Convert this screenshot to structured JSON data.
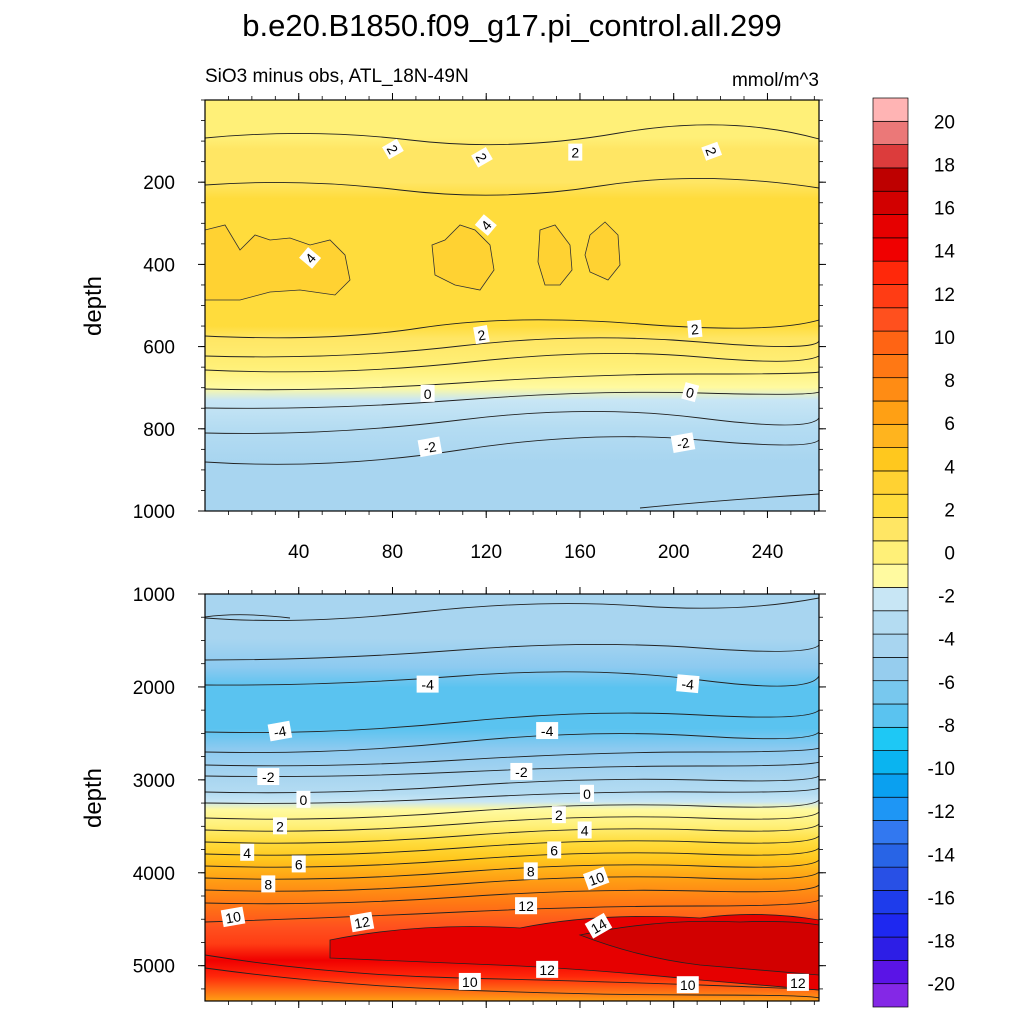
{
  "chart_data": {
    "type": "contour",
    "title": "b.e20.B1850.f09_g17.pi_control.all.299",
    "subtitle_left": "SiO3 minus obs, ATL_18N-49N",
    "subtitle_right": "mmol/m^3",
    "x_range": [
      0,
      262
    ],
    "x_ticks": [
      "40",
      "80",
      "120",
      "160",
      "200",
      "240"
    ],
    "x_tick_values": [
      40,
      80,
      120,
      160,
      200,
      240
    ],
    "colorbar": {
      "levels": [
        -20,
        -18,
        -16,
        -14,
        -12,
        -10,
        -8,
        -6,
        -4,
        -2,
        0,
        2,
        4,
        6,
        8,
        10,
        12,
        14,
        16,
        18,
        20
      ],
      "labels": [
        "20",
        "18",
        "16",
        "14",
        "12",
        "10",
        "8",
        "6",
        "4",
        "2",
        "0",
        "-2",
        "-4",
        "-6",
        "-8",
        "-10",
        "-12",
        "-14",
        "-16",
        "-18",
        "-20"
      ],
      "colors": [
        "#8428e6",
        "#5a14e6",
        "#2d1ee6",
        "#1e28f0",
        "#1e3ceb",
        "#2850e6",
        "#2864e6",
        "#3278f0",
        "#1e96f5",
        "#0aa0f0",
        "#0ab4f0",
        "#1ec8f5",
        "#5ac3f0",
        "#78c8ee",
        "#96cdee",
        "#a8d5f0",
        "#b4dcf2",
        "#c8e6f5",
        "#fffaa0",
        "#fff078",
        "#ffe664",
        "#ffdc3c",
        "#ffd232",
        "#ffc81e",
        "#ffb41e",
        "#ffa014",
        "#ff8c14",
        "#ff7814",
        "#ff6414",
        "#ff501e",
        "#ff3c14",
        "#ff280a",
        "#f00000",
        "#e60000",
        "#d20000",
        "#be0000",
        "#dc3c3c",
        "#eb7878",
        "#ffb4b4"
      ]
    },
    "panels": [
      {
        "name": "upper",
        "ylabel": "depth",
        "y_range": [
          0,
          1000
        ],
        "y_ticks": [
          "200",
          "400",
          "600",
          "800",
          "1000"
        ],
        "y_tick_values": [
          200,
          400,
          600,
          800,
          1000
        ],
        "contour_labels": [
          {
            "text": "2",
            "x": 80,
            "y": 120,
            "rot": 60
          },
          {
            "text": "2",
            "x": 118,
            "y": 140,
            "rot": 60
          },
          {
            "text": "2",
            "x": 158,
            "y": 128,
            "rot": 0
          },
          {
            "text": "2",
            "x": 216,
            "y": 125,
            "rot": 70
          },
          {
            "text": "4",
            "x": 45,
            "y": 385,
            "rot": -50
          },
          {
            "text": "4",
            "x": 120,
            "y": 305,
            "rot": -50
          },
          {
            "text": "2",
            "x": 118,
            "y": 572,
            "rot": -10
          },
          {
            "text": "2",
            "x": 209,
            "y": 558,
            "rot": -5
          },
          {
            "text": "0",
            "x": 95,
            "y": 715,
            "rot": 0
          },
          {
            "text": "0",
            "x": 207,
            "y": 712,
            "rot": 15
          },
          {
            "text": "-2",
            "x": 96,
            "y": 845,
            "rot": -10
          },
          {
            "text": "-2",
            "x": 204,
            "y": 835,
            "rot": -10
          }
        ]
      },
      {
        "name": "lower",
        "ylabel": "depth",
        "y_range": [
          1000,
          5380
        ],
        "y_ticks": [
          "1000",
          "2000",
          "3000",
          "4000",
          "5000"
        ],
        "y_tick_values": [
          1000,
          2000,
          3000,
          4000,
          5000
        ],
        "contour_labels": [
          {
            "text": "-4",
            "x": 95,
            "y": 1975,
            "rot": 0
          },
          {
            "text": "-4",
            "x": 206,
            "y": 1970,
            "rot": 5
          },
          {
            "text": "-4",
            "x": 32,
            "y": 2480,
            "rot": -10
          },
          {
            "text": "-4",
            "x": 146,
            "y": 2475,
            "rot": 0
          },
          {
            "text": "-2",
            "x": 27,
            "y": 2970,
            "rot": 0
          },
          {
            "text": "-2",
            "x": 135,
            "y": 2915,
            "rot": 0
          },
          {
            "text": "0",
            "x": 42,
            "y": 3215,
            "rot": 0
          },
          {
            "text": "0",
            "x": 163,
            "y": 3150,
            "rot": 0
          },
          {
            "text": "2",
            "x": 32,
            "y": 3500,
            "rot": 0
          },
          {
            "text": "2",
            "x": 151,
            "y": 3380,
            "rot": 0
          },
          {
            "text": "4",
            "x": 162,
            "y": 3545,
            "rot": 0
          },
          {
            "text": "4",
            "x": 18,
            "y": 3785,
            "rot": 0
          },
          {
            "text": "6",
            "x": 149,
            "y": 3760,
            "rot": 0
          },
          {
            "text": "6",
            "x": 40,
            "y": 3910,
            "rot": 0
          },
          {
            "text": "8",
            "x": 139,
            "y": 3985,
            "rot": 0
          },
          {
            "text": "8",
            "x": 27,
            "y": 4125,
            "rot": 0
          },
          {
            "text": "10",
            "x": 167,
            "y": 4065,
            "rot": -20
          },
          {
            "text": "12",
            "x": 137,
            "y": 4360,
            "rot": 0
          },
          {
            "text": "10",
            "x": 12,
            "y": 4480,
            "rot": -10
          },
          {
            "text": "12",
            "x": 67,
            "y": 4535,
            "rot": -10
          },
          {
            "text": "14",
            "x": 168,
            "y": 4575,
            "rot": -30
          },
          {
            "text": "12",
            "x": 146,
            "y": 5045,
            "rot": 0
          },
          {
            "text": "10",
            "x": 113,
            "y": 5175,
            "rot": 0
          },
          {
            "text": "10",
            "x": 206,
            "y": 5210,
            "rot": 0
          },
          {
            "text": "12",
            "x": 253,
            "y": 5185,
            "rot": 0
          }
        ]
      }
    ]
  }
}
